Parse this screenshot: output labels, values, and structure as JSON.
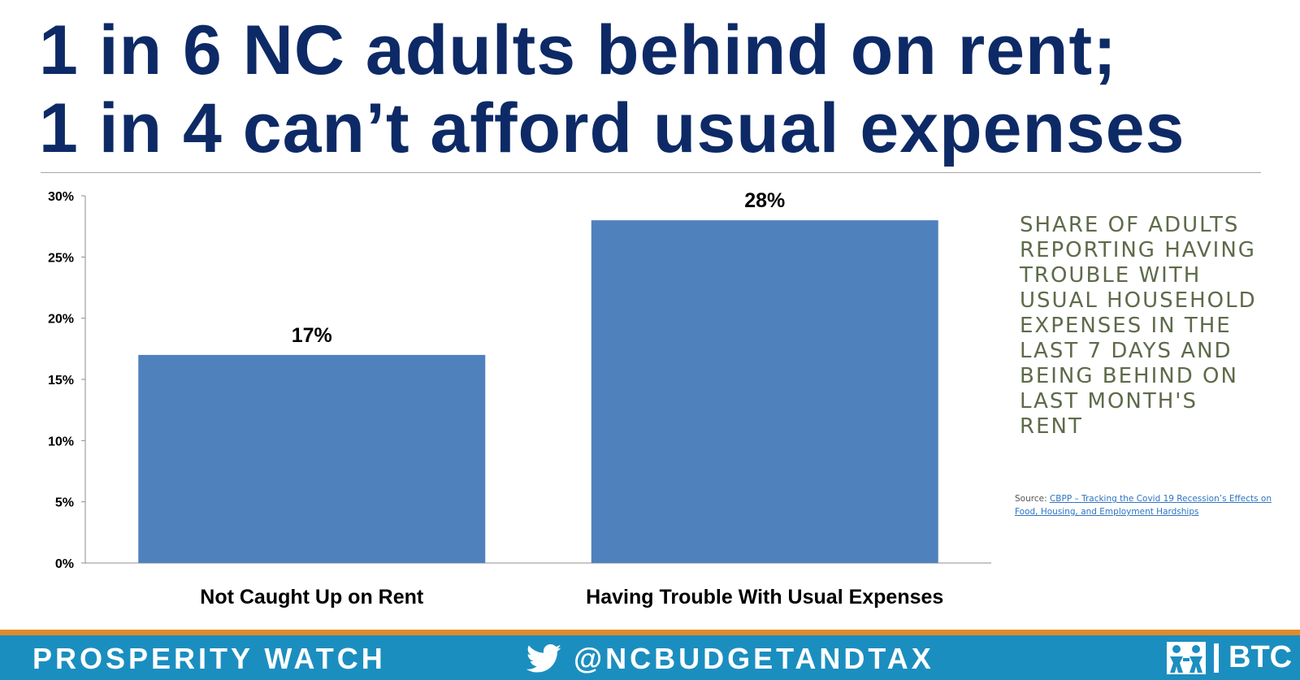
{
  "title": {
    "line1": "1 in 6 NC adults behind on rent;",
    "line2": "1 in 4 can’t afford usual expenses"
  },
  "side_note": "Share of adults reporting having trouble with usual household expenses in the last 7 days and being behind on last month's rent",
  "source": {
    "label": "Source: ",
    "link_text": "CBPP – Tracking the Covid 19 Recession’s Effects on Food, Housing, and Employment Hardships"
  },
  "footer": {
    "left_text": "PROSPERITY WATCH",
    "handle": "@NCBUDGETANDTAX",
    "logo_text": "BTC",
    "twitter_icon": "twitter-bird-icon",
    "logo_icon": "btc-people-logo-icon"
  },
  "colors": {
    "title": "#0d2a66",
    "bar": "#4f81bd",
    "footer": "#1b8ec0",
    "footer_stripe": "#e08a2c",
    "side_note": "#5e6a4a"
  },
  "chart_data": {
    "type": "bar",
    "categories": [
      "Not Caught Up on Rent",
      "Having Trouble With Usual Expenses"
    ],
    "values": [
      17,
      28
    ],
    "value_labels": [
      "17%",
      "28%"
    ],
    "ylim": [
      0,
      30
    ],
    "yticks": [
      0,
      5,
      10,
      15,
      20,
      25,
      30
    ],
    "ytick_labels": [
      "0%",
      "5%",
      "10%",
      "15%",
      "20%",
      "25%",
      "30%"
    ],
    "grid": false,
    "legend": "none",
    "xlabel": "",
    "ylabel": ""
  }
}
